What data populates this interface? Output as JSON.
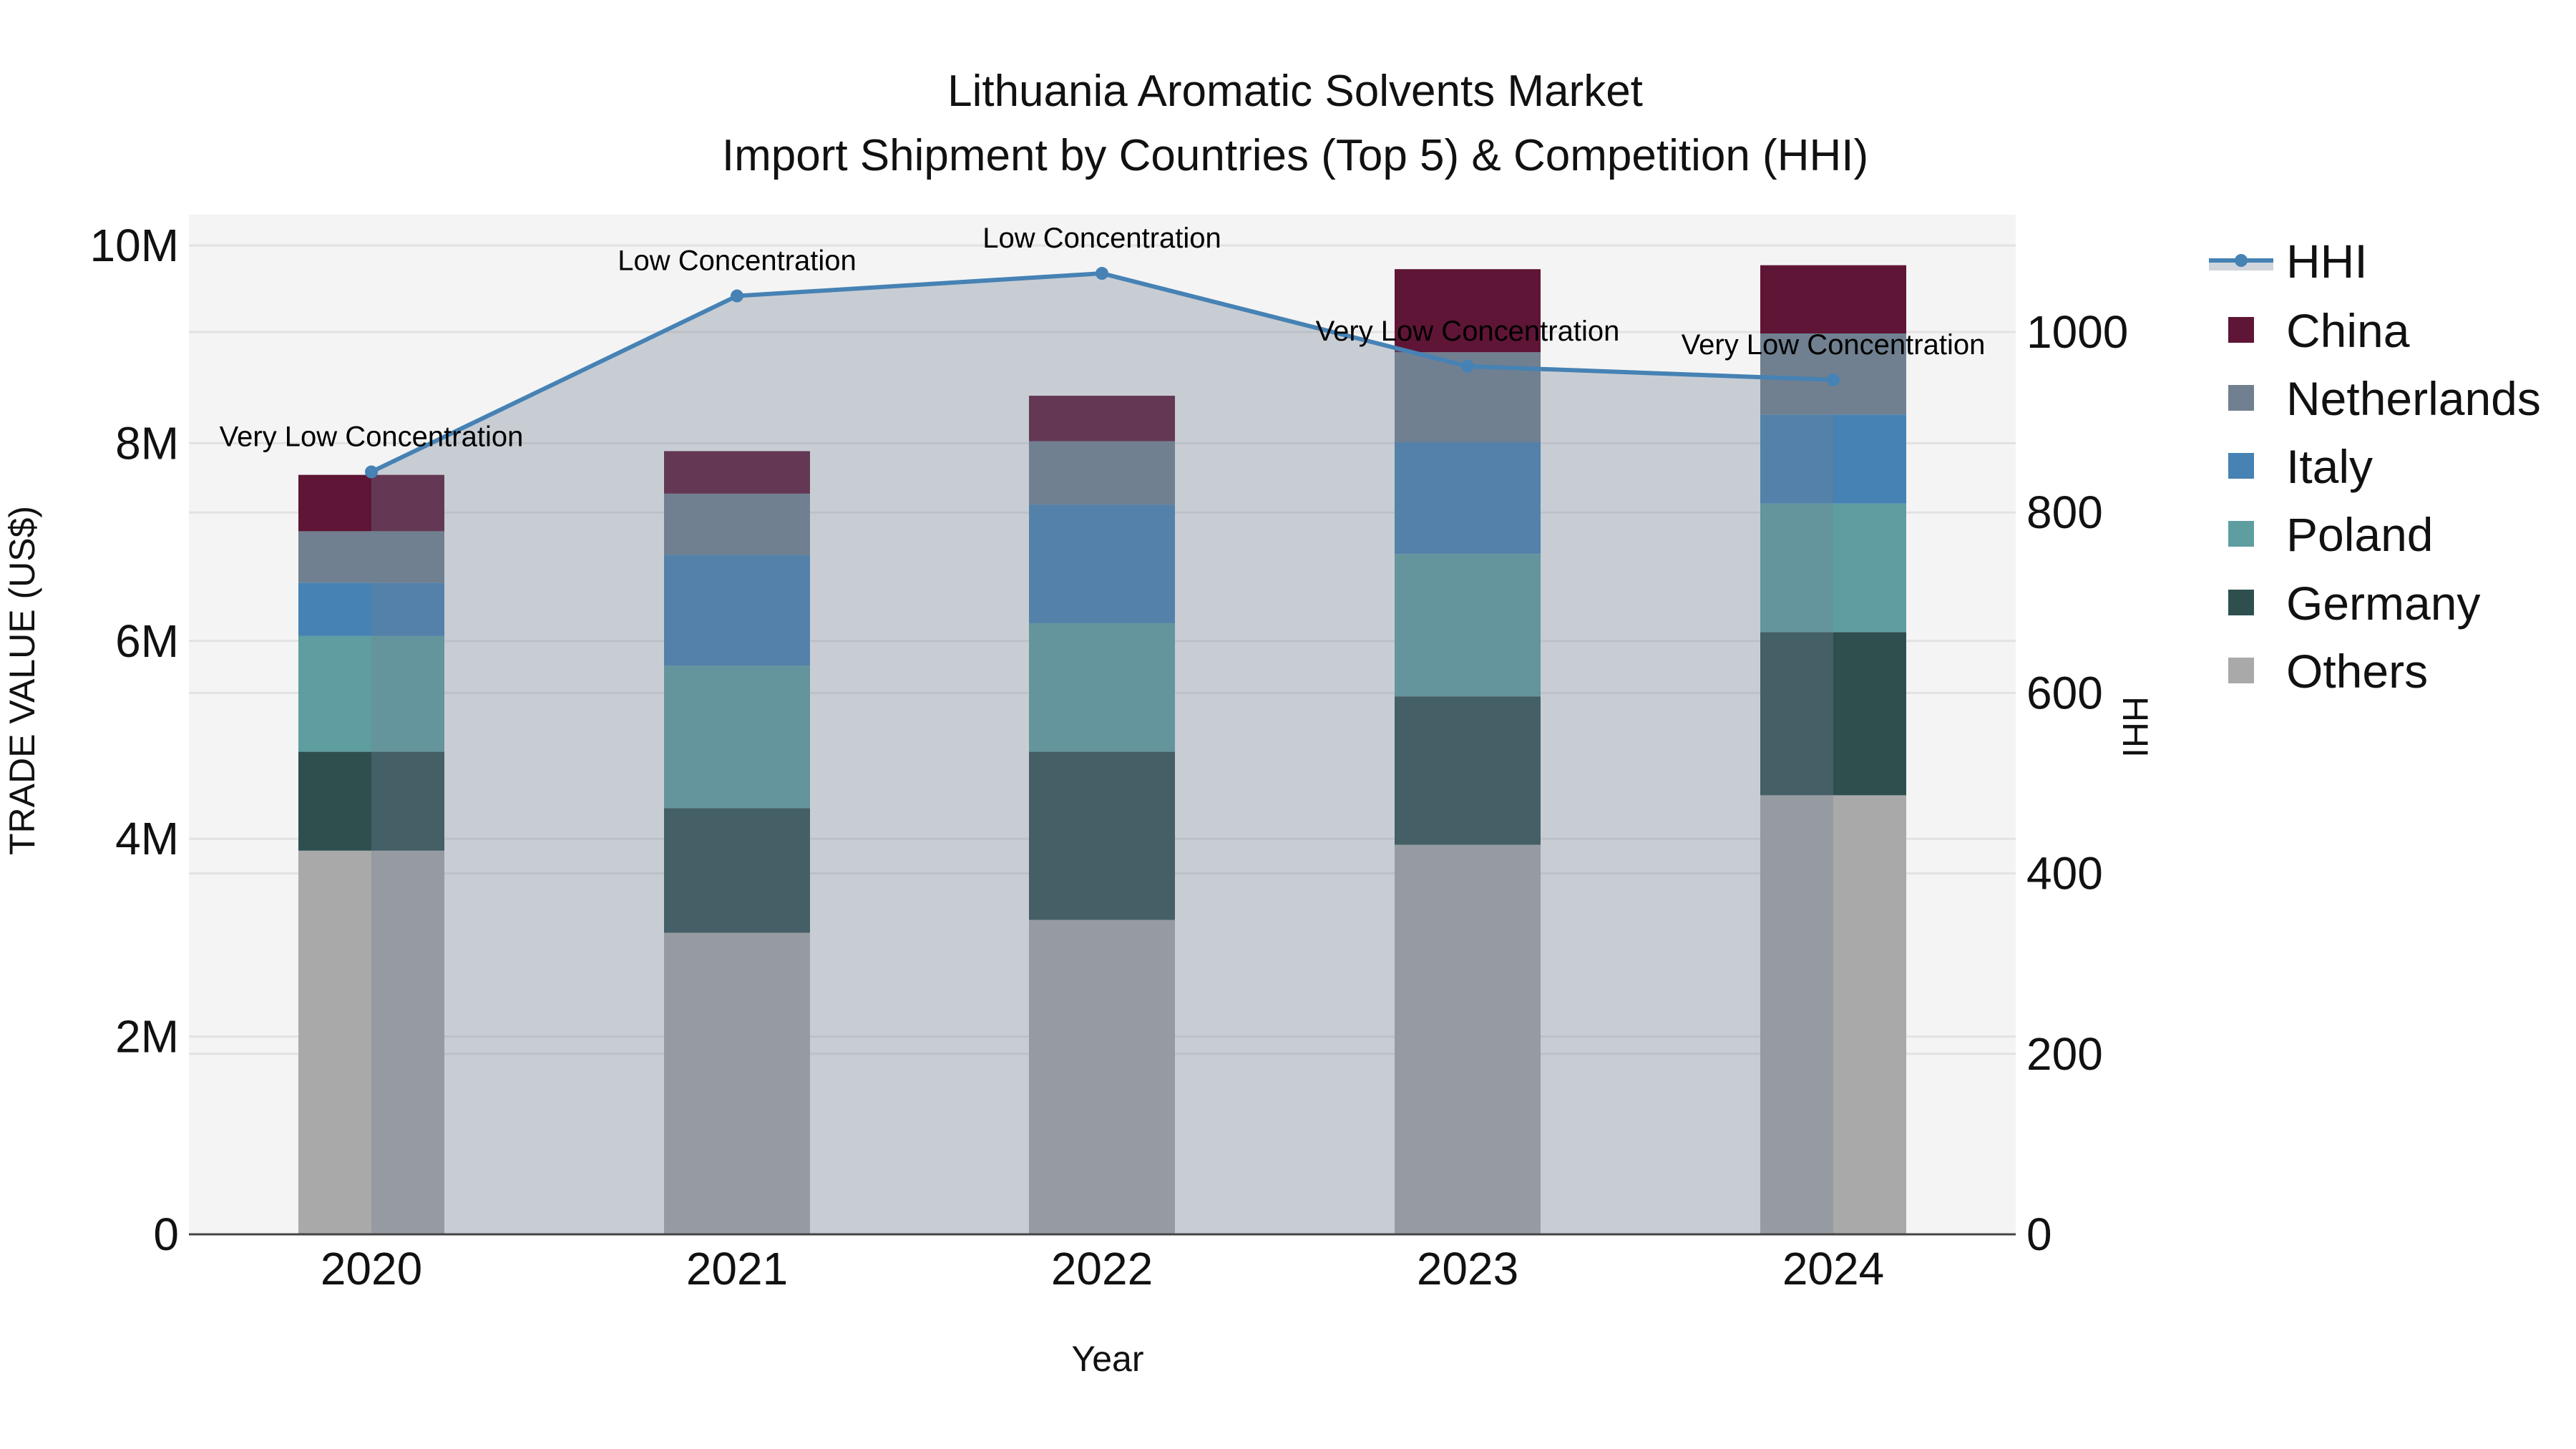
{
  "title": {
    "line1": "Lithuania Aromatic Solvents Market",
    "line2": "Import Shipment by Countries (Top 5) & Competition (HHI)"
  },
  "axes": {
    "x_title": "Year",
    "y_left_title": "TRADE VALUE (US$)",
    "y_right_title": "HHI",
    "y_left_ticks": [
      "0",
      "2M",
      "4M",
      "6M",
      "8M",
      "10M"
    ],
    "y_right_ticks": [
      "0",
      "200",
      "400",
      "600",
      "800",
      "1000"
    ]
  },
  "legend": [
    {
      "name": "HHI",
      "type": "line",
      "color": "#4682b4"
    },
    {
      "name": "China",
      "type": "bar",
      "color": "#5f1536"
    },
    {
      "name": "Netherlands",
      "type": "bar",
      "color": "#708090"
    },
    {
      "name": "Italy",
      "type": "bar",
      "color": "#4682b4"
    },
    {
      "name": "Poland",
      "type": "bar",
      "color": "#5f9ea0"
    },
    {
      "name": "Germany",
      "type": "bar",
      "color": "#2f4f4f"
    },
    {
      "name": "Others",
      "type": "bar",
      "color": "#a9a9a9"
    }
  ],
  "chart_data": {
    "type": "bar",
    "stacked": true,
    "title": "Lithuania Aromatic Solvents Market — Import Shipment by Countries (Top 5) & Competition (HHI)",
    "xlabel": "Year",
    "ylabel": "TRADE VALUE (US$)",
    "y2label": "HHI",
    "ylim": [
      0,
      10300000
    ],
    "y2lim": [
      0,
      1125
    ],
    "grid": true,
    "legend_position": "right",
    "categories": [
      "2020",
      "2021",
      "2022",
      "2023",
      "2024"
    ],
    "series": [
      {
        "name": "Others",
        "color": "#a9a9a9",
        "values": [
          3880000,
          3050000,
          3180000,
          3940000,
          4440000
        ]
      },
      {
        "name": "Germany",
        "color": "#2f4f4f",
        "values": [
          1000000,
          1260000,
          1700000,
          1500000,
          1650000
        ]
      },
      {
        "name": "Poland",
        "color": "#5f9ea0",
        "values": [
          1170000,
          1440000,
          1300000,
          1440000,
          1300000
        ]
      },
      {
        "name": "Italy",
        "color": "#4682b4",
        "values": [
          540000,
          1120000,
          1200000,
          1130000,
          900000
        ]
      },
      {
        "name": "Netherlands",
        "color": "#708090",
        "values": [
          520000,
          620000,
          640000,
          910000,
          820000
        ]
      },
      {
        "name": "China",
        "color": "#5f1536",
        "values": [
          570000,
          430000,
          460000,
          840000,
          690000
        ]
      }
    ],
    "line_series": {
      "name": "HHI",
      "axis": "right",
      "color": "#4682b4",
      "values": [
        845,
        1040,
        1065,
        962,
        947
      ],
      "annotations": [
        "Very Low Concentration",
        "Low Concentration",
        "Low Concentration",
        "Very Low Concentration",
        "Very Low Concentration"
      ]
    }
  }
}
